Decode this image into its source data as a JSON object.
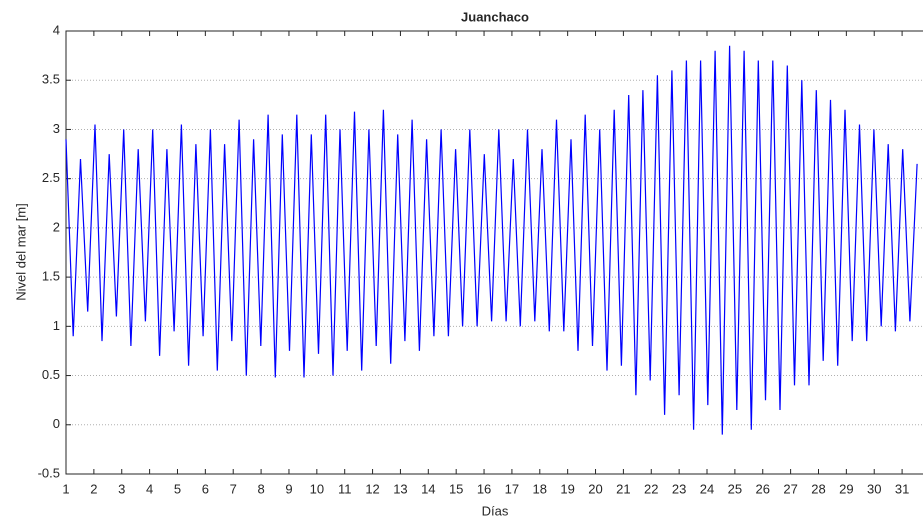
{
  "chart_data": {
    "type": "line",
    "title": "Juanchaco",
    "x_label": "Días",
    "y_label": "Nivel del mar [m]",
    "xlim": [
      1,
      31.75
    ],
    "xticks": [
      1,
      2,
      3,
      4,
      5,
      6,
      7,
      8,
      9,
      10,
      11,
      12,
      13,
      14,
      15,
      16,
      17,
      18,
      19,
      20,
      21,
      22,
      23,
      24,
      25,
      26,
      27,
      28,
      29,
      30,
      31
    ],
    "ylim": [
      -0.5,
      4
    ],
    "yticks": [
      -0.5,
      0,
      0.5,
      1,
      1.5,
      2,
      2.5,
      3,
      3.5,
      4
    ],
    "grid": true,
    "series": [
      {
        "color": "#0000ff",
        "x": [
          1.0,
          1.26,
          1.52,
          1.78,
          2.04,
          2.29,
          2.55,
          2.81,
          3.07,
          3.33,
          3.59,
          3.85,
          4.11,
          4.36,
          4.62,
          4.88,
          5.14,
          5.4,
          5.66,
          5.92,
          6.18,
          6.43,
          6.69,
          6.95,
          7.21,
          7.47,
          7.73,
          7.99,
          8.25,
          8.51,
          8.76,
          9.02,
          9.28,
          9.54,
          9.8,
          10.06,
          10.32,
          10.58,
          10.83,
          11.09,
          11.35,
          11.61,
          11.87,
          12.13,
          12.39,
          12.65,
          12.9,
          13.16,
          13.42,
          13.68,
          13.94,
          14.2,
          14.46,
          14.72,
          14.98,
          15.23,
          15.49,
          15.75,
          16.01,
          16.27,
          16.53,
          16.79,
          17.05,
          17.3,
          17.56,
          17.82,
          18.08,
          18.34,
          18.6,
          18.86,
          19.12,
          19.37,
          19.63,
          19.89,
          20.15,
          20.41,
          20.67,
          20.93,
          21.19,
          21.45,
          21.7,
          21.96,
          22.22,
          22.48,
          22.74,
          23.0,
          23.26,
          23.52,
          23.77,
          24.03,
          24.29,
          24.55,
          24.81,
          25.07,
          25.33,
          25.59,
          25.84,
          26.1,
          26.36,
          26.62,
          26.88,
          27.14,
          27.4,
          27.66,
          27.92,
          28.17,
          28.43,
          28.69,
          28.95,
          29.21,
          29.47,
          29.73,
          29.99,
          30.25,
          30.5,
          30.76,
          31.02,
          31.28,
          31.54
        ],
        "values": [
          2.9,
          0.9,
          2.7,
          1.15,
          3.05,
          0.85,
          2.75,
          1.1,
          3.0,
          0.8,
          2.8,
          1.05,
          3.0,
          0.7,
          2.8,
          0.95,
          3.05,
          0.6,
          2.85,
          0.9,
          3.0,
          0.55,
          2.85,
          0.85,
          3.1,
          0.5,
          2.9,
          0.8,
          3.15,
          0.48,
          2.95,
          0.75,
          3.15,
          0.48,
          2.95,
          0.72,
          3.15,
          0.5,
          3.0,
          0.75,
          3.18,
          0.55,
          3.0,
          0.8,
          3.2,
          0.62,
          2.95,
          0.85,
          3.1,
          0.75,
          2.9,
          0.9,
          3.0,
          0.9,
          2.8,
          1.0,
          3.0,
          1.0,
          2.75,
          1.05,
          3.0,
          1.05,
          2.7,
          1.0,
          3.0,
          1.05,
          2.8,
          0.95,
          3.1,
          0.95,
          2.9,
          0.75,
          3.15,
          0.8,
          3.0,
          0.55,
          3.2,
          0.6,
          3.35,
          0.3,
          3.4,
          0.45,
          3.55,
          0.1,
          3.6,
          0.3,
          3.7,
          -0.05,
          3.7,
          0.2,
          3.8,
          -0.1,
          3.85,
          0.15,
          3.8,
          -0.05,
          3.7,
          0.25,
          3.7,
          0.15,
          3.65,
          0.4,
          3.5,
          0.4,
          3.4,
          0.65,
          3.3,
          0.6,
          3.2,
          0.85,
          3.05,
          0.85,
          3.0,
          1.0,
          2.85,
          0.95,
          2.8,
          1.05,
          2.65
        ]
      }
    ]
  }
}
